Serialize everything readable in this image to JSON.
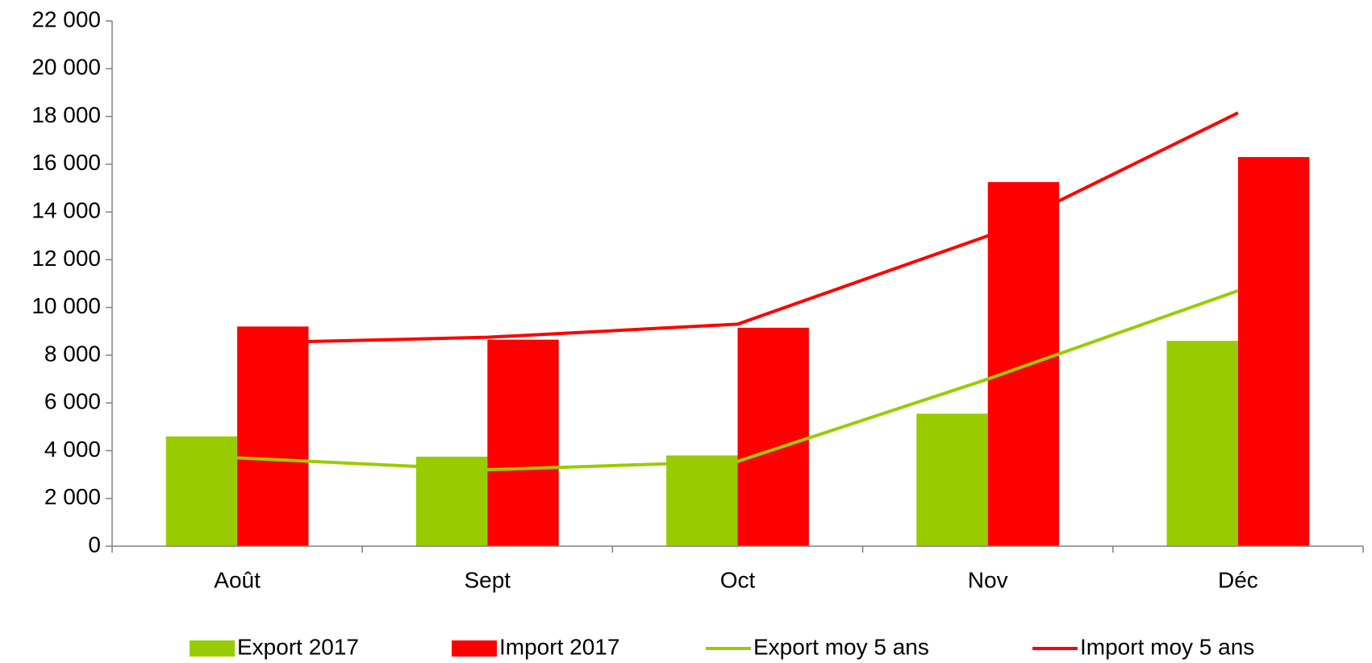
{
  "chart_data": {
    "type": "bar_line",
    "categories": [
      "Août",
      "Sept",
      "Oct",
      "Nov",
      "Déc"
    ],
    "series": [
      {
        "name": "Export 2017",
        "type": "bar",
        "color": "#99cc00",
        "values": [
          4600,
          3750,
          3800,
          5550,
          8600
        ]
      },
      {
        "name": "Import 2017",
        "type": "bar",
        "color": "#ff0000",
        "values": [
          9200,
          8650,
          9150,
          15250,
          16300
        ]
      },
      {
        "name": "Export moy 5 ans",
        "type": "line",
        "color": "#99cc00",
        "values": [
          3700,
          3200,
          3550,
          7000,
          10700
        ]
      },
      {
        "name": "Import moy 5 ans",
        "type": "line",
        "color": "#ff0000",
        "values": [
          8500,
          8750,
          9300,
          13000,
          18150
        ]
      }
    ],
    "ylim": [
      0,
      22000
    ],
    "yticks": [
      0,
      {
        "value": 2000,
        "label": "2 000"
      },
      {
        "value": 4000,
        "label": "4 000"
      },
      {
        "value": 6000,
        "label": "6 000"
      },
      {
        "value": 8000,
        "label": "8 000"
      },
      {
        "value": 10000,
        "label": "10 000"
      },
      {
        "value": 12000,
        "label": "12 000"
      },
      {
        "value": 14000,
        "label": "14 000"
      },
      {
        "value": 16000,
        "label": "16 000"
      },
      {
        "value": 18000,
        "label": "18 000"
      },
      {
        "value": 20000,
        "label": "20 000"
      },
      {
        "value": 22000,
        "label": "22 000"
      }
    ],
    "legend": "bottom",
    "grid": false
  }
}
